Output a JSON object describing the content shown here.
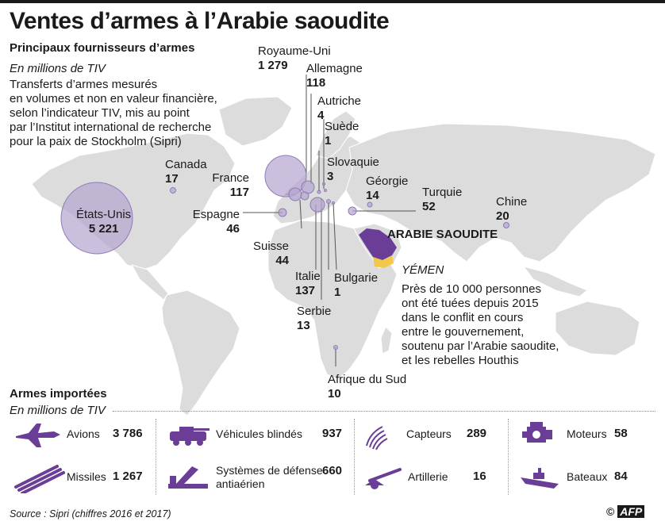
{
  "title": "Ventes d’armes à l’Arabie saoudite",
  "subtitle": "Principaux fournisseurs d’armes",
  "unit": "En millions de TIV",
  "description": [
    "Transferts d’armes mesurés",
    "en volumes et non en valeur financière,",
    "selon l’indicateur TIV, mis au point",
    "par l’Institut international de recherche",
    "pour la paix de Stockholm (Sipri)"
  ],
  "colors": {
    "bubble": "#b7a6d1",
    "bubble_stroke": "#8f7bb5",
    "saudi": "#6a3d96",
    "yemen": "#f2c84b",
    "land": "#dcdcdc"
  },
  "suppliers": [
    {
      "name": "États-Unis",
      "value": "5 221",
      "amount": 5221
    },
    {
      "name": "Royaume-Uni",
      "value": "1 279",
      "amount": 1279
    },
    {
      "name": "Allemagne",
      "value": "118",
      "amount": 118
    },
    {
      "name": "Autriche",
      "value": "4",
      "amount": 4
    },
    {
      "name": "Suède",
      "value": "1",
      "amount": 1
    },
    {
      "name": "Slovaquie",
      "value": "3",
      "amount": 3
    },
    {
      "name": "Géorgie",
      "value": "14",
      "amount": 14
    },
    {
      "name": "Turquie",
      "value": "52",
      "amount": 52
    },
    {
      "name": "Chine",
      "value": "20",
      "amount": 20
    },
    {
      "name": "Canada",
      "value": "17",
      "amount": 17
    },
    {
      "name": "France",
      "value": "117",
      "amount": 117
    },
    {
      "name": "Espagne",
      "value": "46",
      "amount": 46
    },
    {
      "name": "Suisse",
      "value": "44",
      "amount": 44
    },
    {
      "name": "Italie",
      "value": "137",
      "amount": 137
    },
    {
      "name": "Bulgarie",
      "value": "1",
      "amount": 1
    },
    {
      "name": "Serbie",
      "value": "13",
      "amount": 13
    },
    {
      "name": "Afrique du Sud",
      "value": "10",
      "amount": 10
    }
  ],
  "saudi_label": "ARABIE SAOUDITE",
  "yemen_label": "YÉMEN",
  "yemen_note": [
    "Près de 10 000 personnes",
    "ont été tuées depuis 2015",
    "dans le conflit en cours",
    "entre le gouvernement,",
    "soutenu par l’Arabie saoudite,",
    "et les rebelles Houthis"
  ],
  "imports": {
    "title": "Armes importées",
    "unit": "En millions de TIV",
    "items": [
      {
        "name": "Avions",
        "value": "3 786",
        "icon": "aircraft-icon"
      },
      {
        "name": "Véhicules blindés",
        "value": "937",
        "icon": "armored-vehicle-icon"
      },
      {
        "name": "Capteurs",
        "value": "289",
        "icon": "sensor-icon"
      },
      {
        "name": "Moteurs",
        "value": "58",
        "icon": "engine-icon"
      },
      {
        "name": "Missiles",
        "value": "1 267",
        "icon": "missile-icon"
      },
      {
        "name": "Systèmes de défense antiaérien",
        "value": "660",
        "icon": "air-defense-icon"
      },
      {
        "name": "Artillerie",
        "value": "16",
        "icon": "artillery-icon"
      },
      {
        "name": "Bateaux",
        "value": "84",
        "icon": "ship-icon"
      }
    ]
  },
  "source": "Source : Sipri (chiffres 2016 et 2017)",
  "credit": "AFP"
}
